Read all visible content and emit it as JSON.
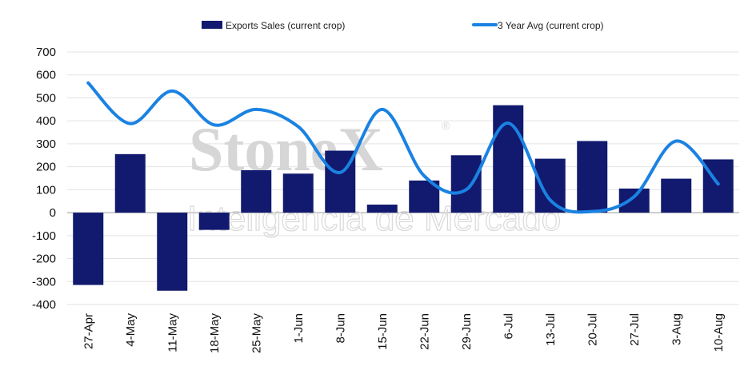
{
  "chart_data": {
    "type": "bar",
    "categories": [
      "27-Apr",
      "4-May",
      "11-May",
      "18-May",
      "25-May",
      "1-Jun",
      "8-Jun",
      "15-Jun",
      "22-Jun",
      "29-Jun",
      "6-Jul",
      "13-Jul",
      "20-Jul",
      "27-Jul",
      "3-Aug",
      "10-Aug"
    ],
    "series": [
      {
        "name": "Exports Sales (current crop)",
        "type": "bar",
        "color": "#111a6e",
        "values": [
          -315,
          255,
          -340,
          -75,
          185,
          170,
          270,
          35,
          140,
          250,
          468,
          235,
          312,
          105,
          148,
          232
        ]
      },
      {
        "name": "3 Year Avg (current crop)",
        "type": "line",
        "color": "#1a82e2",
        "values": [
          565,
          388,
          530,
          382,
          450,
          375,
          175,
          450,
          160,
          100,
          390,
          55,
          5,
          70,
          312,
          125
        ]
      }
    ],
    "ylim": [
      -400,
      700
    ],
    "yticks": [
      -400,
      -300,
      -200,
      -100,
      0,
      100,
      200,
      300,
      400,
      500,
      600,
      700
    ],
    "ytick_labels": [
      "-400",
      "-300",
      "-200",
      "-100",
      "0",
      "100",
      "200",
      "300",
      "400",
      "500",
      "600",
      "700"
    ],
    "grid": true,
    "legend_position": "top",
    "title": "",
    "xlabel": "",
    "ylabel": ""
  },
  "watermark": {
    "brand": "StoneX",
    "registered_mark": "®",
    "tagline": "Inteligência de Mercado"
  }
}
